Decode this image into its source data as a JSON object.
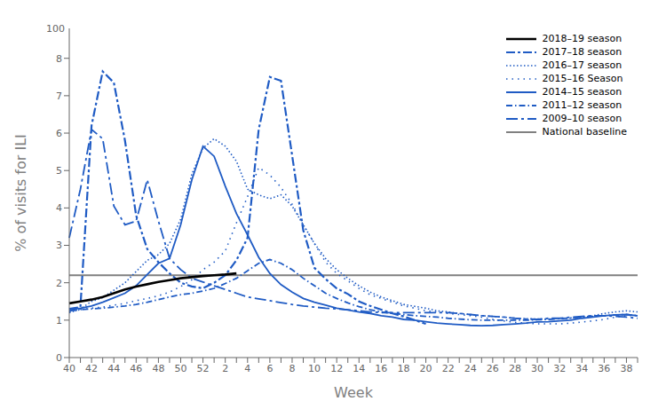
{
  "chart_data": {
    "type": "line",
    "xlabel": "Week",
    "ylabel": "% of visits for ILI",
    "categories": [
      "40",
      null,
      "42",
      null,
      "44",
      null,
      "46",
      null,
      "48",
      null,
      "50",
      null,
      "52",
      null,
      "2",
      null,
      "4",
      null,
      "6",
      null,
      "8",
      null,
      "10",
      null,
      "12",
      null,
      "14",
      null,
      "16",
      null,
      "18",
      null,
      "20",
      null,
      "22",
      null,
      "24",
      null,
      "26",
      null,
      "28",
      null,
      "30",
      null,
      "32",
      null,
      "34",
      null,
      "36",
      null,
      "38",
      null
    ],
    "ylim": [
      0,
      8.8
    ],
    "yticks": [
      0,
      1,
      2,
      3,
      4,
      5,
      6,
      7,
      8
    ],
    "grid": false,
    "legend": "upper right",
    "annotations": [
      {
        "text": "100"
      }
    ],
    "baseline": {
      "name": "National baseline",
      "value": 2.2,
      "color": "#808080",
      "line_style": "solid"
    },
    "series": [
      {
        "name": "2018–19 season",
        "color": "#000000",
        "line_style": "solid",
        "values": [
          1.45,
          1.5,
          1.55,
          1.62,
          1.72,
          1.82,
          1.9,
          1.96,
          2.02,
          2.07,
          2.12,
          2.15,
          2.18,
          2.2,
          2.22,
          2.25,
          null,
          null,
          null,
          null,
          null,
          null,
          null,
          null,
          null,
          null,
          null,
          null,
          null,
          null,
          null,
          null,
          null,
          null,
          null,
          null,
          null,
          null,
          null,
          null,
          null,
          null,
          null,
          null,
          null,
          null,
          null,
          null,
          null,
          null,
          null,
          null
        ]
      },
      {
        "name": "2017–18 season",
        "color": "#1f5bc4",
        "line_style": "dashdot",
        "values": [
          1.3,
          1.35,
          6.2,
          7.65,
          7.35,
          5.8,
          3.8,
          2.9,
          2.55,
          2.25,
          2.0,
          1.9,
          1.85,
          2.0,
          2.2,
          2.6,
          3.2,
          6.1,
          7.5,
          7.4,
          5.4,
          3.4,
          2.4,
          2.1,
          1.85,
          1.7,
          1.5,
          1.38,
          1.28,
          1.18,
          1.1,
          1.0,
          0.9,
          null,
          null,
          null,
          null,
          null,
          null,
          null,
          null,
          null,
          null,
          null,
          null,
          null,
          null,
          null,
          null,
          null,
          null,
          null
        ]
      },
      {
        "name": "2016–17 season",
        "color": "#1f5bc4",
        "line_style": "dotted",
        "values": [
          1.2,
          1.3,
          1.5,
          1.6,
          1.8,
          2.0,
          2.3,
          2.6,
          2.75,
          3.05,
          3.7,
          4.9,
          5.6,
          5.85,
          5.65,
          5.25,
          4.5,
          4.35,
          4.25,
          4.35,
          4.05,
          3.55,
          3.05,
          2.65,
          2.35,
          2.12,
          1.92,
          1.75,
          1.62,
          1.52,
          1.42,
          1.37,
          1.32,
          1.25,
          1.22,
          1.18,
          1.15,
          1.12,
          1.1,
          1.08,
          1.05,
          1.04,
          1.03,
          1.03,
          1.05,
          1.05,
          1.08,
          1.12,
          1.18,
          1.22,
          1.25,
          1.22
        ]
      },
      {
        "name": "2015–16 Season",
        "color": "#1f5bc4",
        "line_style": "sparse_dotted",
        "values": [
          1.22,
          1.28,
          1.32,
          1.35,
          1.4,
          1.45,
          1.52,
          1.58,
          1.65,
          1.75,
          1.9,
          2.08,
          2.35,
          2.55,
          2.85,
          3.6,
          4.3,
          5.08,
          4.88,
          4.55,
          4.1,
          3.55,
          3.05,
          2.55,
          2.25,
          2.05,
          1.85,
          1.68,
          1.58,
          1.48,
          1.38,
          1.32,
          1.25,
          1.22,
          1.18,
          1.15,
          1.12,
          1.08,
          1.02,
          0.98,
          0.94,
          0.92,
          0.9,
          0.9,
          0.9,
          0.92,
          0.95,
          0.98,
          1.02,
          1.08,
          1.12,
          1.12
        ]
      },
      {
        "name": "2014–15 season",
        "color": "#1f5bc4",
        "line_style": "solid",
        "values": [
          1.28,
          1.32,
          1.38,
          1.48,
          1.6,
          1.72,
          1.92,
          2.22,
          2.52,
          2.65,
          3.55,
          4.75,
          5.65,
          5.38,
          4.58,
          3.85,
          3.28,
          2.68,
          2.25,
          1.95,
          1.75,
          1.58,
          1.48,
          1.4,
          1.32,
          1.27,
          1.22,
          1.18,
          1.12,
          1.08,
          1.02,
          1.0,
          0.96,
          0.92,
          0.9,
          0.88,
          0.86,
          0.85,
          0.86,
          0.88,
          0.9,
          0.92,
          0.95,
          0.96,
          0.98,
          1.0,
          1.05,
          1.08,
          1.12,
          1.14,
          1.15,
          1.12
        ]
      },
      {
        "name": "2011–12 season",
        "color": "#1f5bc4",
        "line_style": "small_dashdot",
        "values": [
          1.25,
          1.28,
          1.3,
          1.32,
          1.35,
          1.38,
          1.42,
          1.48,
          1.55,
          1.62,
          1.68,
          1.72,
          1.78,
          1.85,
          1.98,
          2.12,
          2.32,
          2.52,
          2.62,
          2.52,
          2.35,
          2.12,
          1.92,
          1.72,
          1.58,
          1.46,
          1.36,
          1.28,
          1.22,
          1.18,
          1.15,
          1.12,
          1.1,
          1.08,
          1.05,
          1.03,
          1.01,
          1.0,
          1.0,
          1.0,
          1.0,
          1.0,
          1.01,
          1.02,
          1.04,
          1.06,
          1.08,
          1.1,
          1.12,
          1.14,
          1.15,
          1.12
        ]
      },
      {
        "name": "2009–10 season",
        "color": "#1f5bc4",
        "line_style": "long_dashdot",
        "values": [
          3.2,
          4.5,
          6.1,
          5.85,
          4.05,
          3.55,
          3.65,
          4.75,
          3.65,
          2.65,
          2.35,
          2.12,
          2.02,
          1.92,
          1.82,
          1.72,
          1.62,
          1.57,
          1.52,
          1.47,
          1.42,
          1.38,
          1.35,
          1.32,
          1.3,
          1.28,
          1.25,
          1.22,
          1.2,
          1.2,
          1.2,
          1.2,
          1.2,
          1.2,
          1.2,
          1.18,
          1.15,
          1.12,
          1.1,
          1.08,
          1.05,
          1.03,
          1.02,
          1.05,
          1.05,
          1.08,
          1.1,
          1.12,
          1.12,
          1.1,
          1.08,
          1.05
        ]
      }
    ]
  }
}
